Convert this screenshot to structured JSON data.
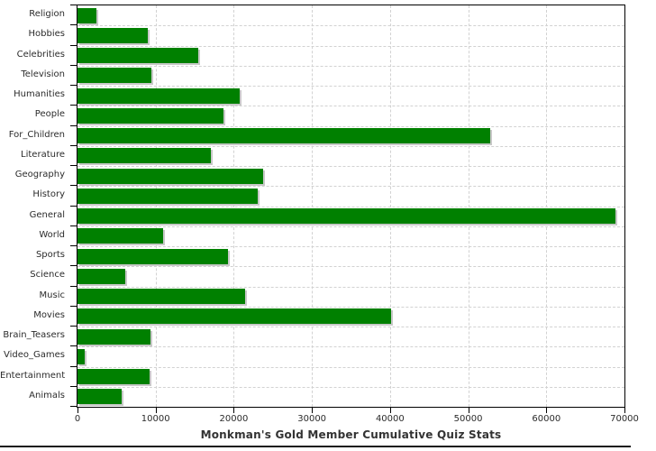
{
  "chart_data": {
    "type": "bar",
    "orientation": "horizontal",
    "title": "Monkman's Gold Member Cumulative Quiz Stats",
    "xlabel": "",
    "ylabel": "",
    "categories": [
      "Religion",
      "Hobbies",
      "Celebrities",
      "Television",
      "Humanities",
      "People",
      "For_Children",
      "Literature",
      "Geography",
      "History",
      "General",
      "World",
      "Sports",
      "Science",
      "Music",
      "Movies",
      "Brain_Teasers",
      "Video_Games",
      "Entertainment",
      "Animals"
    ],
    "values": [
      2400,
      9000,
      15500,
      9400,
      20800,
      18700,
      52800,
      17100,
      23700,
      23100,
      68800,
      10900,
      19300,
      6100,
      21400,
      40100,
      9300,
      900,
      9200,
      5600
    ],
    "xlim": [
      0,
      70000
    ],
    "x_ticks": [
      0,
      10000,
      20000,
      30000,
      40000,
      50000,
      60000,
      70000
    ],
    "x_tick_labels": [
      "0",
      "10000",
      "20000",
      "30000",
      "40000",
      "50000",
      "60000",
      "70000"
    ],
    "grid": true,
    "legend": "none",
    "bar_color": "#008000",
    "bar_shadow_color": "#c8c8c8",
    "grid_color": "#d2d2d2",
    "axis_color": "#000000",
    "text_color": "#2b2b2b"
  }
}
